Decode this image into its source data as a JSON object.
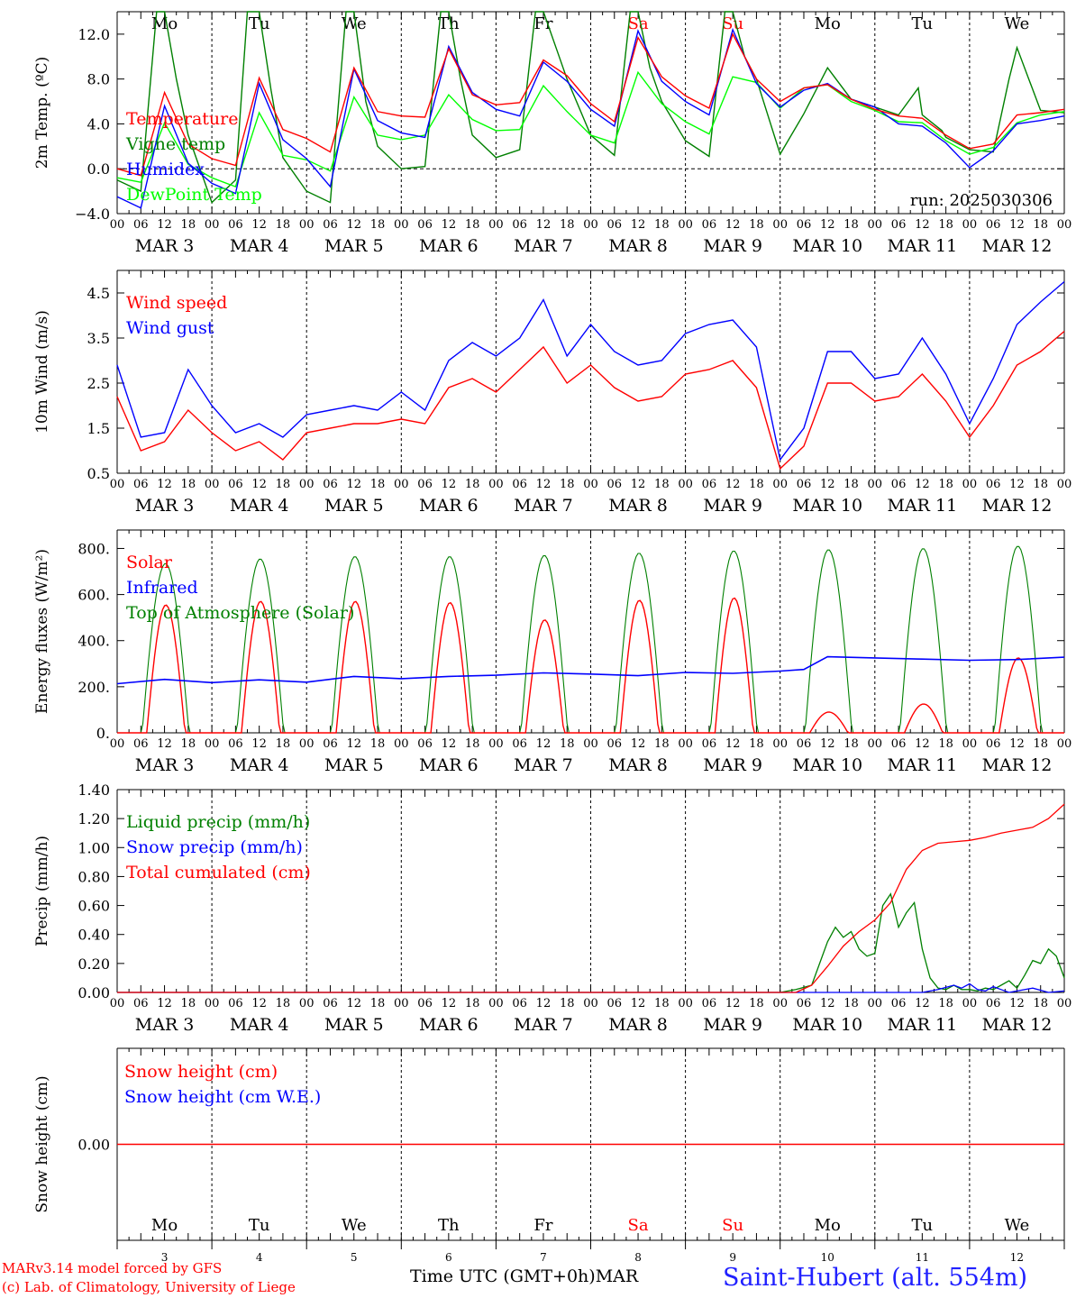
{
  "footer": {
    "model": "MARv3.14 model forced by GFS",
    "lab": "(c) Lab. of Climatology, University of Liege",
    "station": "Saint-Hubert (alt. 554m)",
    "xaxis_title": "Time UTC (GMT+0h)",
    "month": "MAR"
  },
  "colors": {
    "red": "#ff0000",
    "green": "#008000",
    "blue": "#0000ff",
    "lime": "#00ff00",
    "weekend": "#ff0000",
    "text": "#000000",
    "station": "#2020ff"
  },
  "days": [
    {
      "dow": "Mo",
      "date": "MAR 3",
      "num": "3",
      "weekend": false
    },
    {
      "dow": "Tu",
      "date": "MAR 4",
      "num": "4",
      "weekend": false
    },
    {
      "dow": "We",
      "date": "MAR 5",
      "num": "5",
      "weekend": false
    },
    {
      "dow": "Th",
      "date": "MAR 6",
      "num": "6",
      "weekend": false
    },
    {
      "dow": "Fr",
      "date": "MAR 7",
      "num": "7",
      "weekend": false
    },
    {
      "dow": "Sa",
      "date": "MAR 8",
      "num": "8",
      "weekend": true
    },
    {
      "dow": "Su",
      "date": "MAR 9",
      "num": "9",
      "weekend": true
    },
    {
      "dow": "Mo",
      "date": "MAR 10",
      "num": "10",
      "weekend": false
    },
    {
      "dow": "Tu",
      "date": "MAR 11",
      "num": "11",
      "weekend": false
    },
    {
      "dow": "We",
      "date": "MAR 12",
      "num": "12",
      "weekend": false
    }
  ],
  "hour_ticks": [
    "00",
    "06",
    "12",
    "18"
  ],
  "chart_data": [
    {
      "type": "line",
      "ylabel": "2m Temp. (ºC)",
      "ylim": [
        -4,
        14
      ],
      "yticks": [
        -4,
        0,
        4,
        8,
        12
      ],
      "ytick_labels": [
        "−4.0",
        "0.0",
        "4.0",
        "8.0",
        "12.0"
      ],
      "annotation": "run: 2025030306",
      "zero_line": true,
      "series": [
        {
          "name": "Temperature",
          "color": "red",
          "x": [
            0,
            6,
            12,
            18,
            24,
            30,
            36,
            42,
            48,
            54,
            60,
            66,
            72,
            78,
            84,
            90,
            96,
            102,
            108,
            114,
            120,
            126,
            132,
            138,
            144,
            150,
            156,
            162,
            168,
            174,
            180,
            186,
            192,
            198,
            204,
            210,
            216,
            222,
            228,
            234,
            240
          ],
          "y": [
            0,
            -0.6,
            6.8,
            2.2,
            0.9,
            0.3,
            8.1,
            3.5,
            2.7,
            1.5,
            9.0,
            5.1,
            4.7,
            4.6,
            10.7,
            6.6,
            5.7,
            5.9,
            9.7,
            8.3,
            5.8,
            4.2,
            11.7,
            8.2,
            6.5,
            5.4,
            12.0,
            8.0,
            6.0,
            7.2,
            7.5,
            6.2,
            5.3,
            4.7,
            4.5,
            3.0,
            1.8,
            2.2,
            4.8,
            5.0,
            5.3
          ]
        },
        {
          "name": "Vigne temp",
          "color": "green",
          "x": [
            0,
            6,
            10,
            12,
            15,
            18,
            24,
            30,
            33,
            36,
            39,
            42,
            48,
            54,
            58,
            60,
            63,
            66,
            72,
            78,
            82,
            84,
            87,
            90,
            96,
            102,
            106,
            108,
            112,
            114,
            120,
            126,
            130,
            132,
            135,
            138,
            144,
            150,
            154,
            156,
            159,
            162,
            168,
            174,
            180,
            186,
            192,
            198,
            203,
            204,
            209,
            210,
            216,
            222,
            226,
            228,
            231,
            234,
            240
          ],
          "y": [
            -1,
            -2,
            14,
            14,
            8,
            3,
            -3,
            -1,
            14,
            14,
            7,
            1,
            -2,
            -3,
            14,
            14,
            6,
            2,
            0,
            0.2,
            14,
            14,
            8,
            3,
            1,
            1.7,
            14,
            14,
            10,
            8,
            3,
            1.2,
            14,
            14,
            9,
            6,
            2.5,
            1.1,
            14,
            14,
            10,
            8,
            1.3,
            4.9,
            9,
            6.2,
            5.5,
            4.8,
            7.2,
            4.8,
            3.4,
            2.8,
            1.7,
            1.5,
            8,
            10.8,
            8,
            5.2,
            5
          ]
        },
        {
          "name": "Humidex",
          "color": "blue",
          "x": [
            0,
            6,
            12,
            18,
            24,
            30,
            36,
            42,
            48,
            54,
            60,
            66,
            72,
            78,
            84,
            90,
            96,
            102,
            108,
            114,
            120,
            126,
            132,
            138,
            144,
            150,
            156,
            162,
            168,
            174,
            180,
            186,
            192,
            198,
            204,
            210,
            216,
            222,
            228,
            234,
            240
          ],
          "y": [
            -2.5,
            -3.5,
            5.6,
            0.5,
            -1.3,
            -2.2,
            7.6,
            2.6,
            0.9,
            -1.6,
            8.9,
            4.3,
            3.2,
            2.8,
            10.9,
            6.8,
            5.3,
            4.7,
            9.5,
            7.8,
            5.3,
            3.8,
            12.3,
            7.8,
            6.0,
            4.8,
            12.4,
            7.6,
            5.5,
            7.0,
            7.6,
            6.2,
            5.5,
            4.0,
            3.8,
            2.3,
            0.1,
            1.6,
            4.0,
            4.3,
            4.7
          ]
        },
        {
          "name": "DewPoint Temp",
          "color": "lime",
          "x": [
            0,
            6,
            12,
            18,
            24,
            30,
            36,
            42,
            48,
            54,
            60,
            66,
            72,
            78,
            84,
            90,
            96,
            102,
            108,
            114,
            120,
            126,
            132,
            138,
            144,
            150,
            156,
            162,
            168,
            174,
            180,
            186,
            192,
            198,
            204,
            210,
            216,
            222,
            228,
            234,
            240
          ],
          "y": [
            -0.8,
            -1.2,
            4.1,
            0.4,
            -0.8,
            -1.6,
            5.0,
            1.2,
            0.8,
            -0.2,
            6.4,
            3.0,
            2.6,
            3.0,
            6.6,
            4.4,
            3.4,
            3.5,
            7.4,
            5.1,
            3.0,
            2.3,
            8.6,
            5.8,
            4.2,
            3.1,
            8.2,
            7.7,
            5.4,
            7.2,
            7.5,
            6.0,
            5.2,
            4.2,
            4.1,
            2.5,
            1.3,
            1.9,
            4.1,
            4.8,
            5.1
          ]
        }
      ]
    },
    {
      "type": "line",
      "ylabel": "10m Wind (m/s)",
      "ylim": [
        0.5,
        5.0
      ],
      "yticks": [
        0.5,
        1.5,
        2.5,
        3.5,
        4.5
      ],
      "ytick_labels": [
        "0.5",
        "1.5",
        "2.5",
        "3.5",
        "4.5"
      ],
      "series": [
        {
          "name": "Wind speed",
          "color": "red",
          "x": [
            0,
            6,
            12,
            18,
            24,
            30,
            36,
            42,
            48,
            54,
            60,
            66,
            72,
            78,
            84,
            90,
            96,
            102,
            108,
            114,
            120,
            126,
            132,
            138,
            144,
            150,
            156,
            162,
            168,
            174,
            180,
            186,
            192,
            198,
            204,
            210,
            216,
            222,
            228,
            234,
            240
          ],
          "y": [
            2.2,
            1.0,
            1.2,
            1.9,
            1.4,
            1.0,
            1.2,
            0.8,
            1.4,
            1.5,
            1.6,
            1.6,
            1.7,
            1.6,
            2.4,
            2.6,
            2.3,
            2.8,
            3.3,
            2.5,
            2.9,
            2.4,
            2.1,
            2.2,
            2.7,
            2.8,
            3.0,
            2.4,
            0.6,
            1.1,
            2.5,
            2.5,
            2.1,
            2.2,
            2.7,
            2.1,
            1.3,
            2.0,
            2.9,
            3.2,
            3.65
          ]
        },
        {
          "name": "Wind gust",
          "color": "blue",
          "x": [
            0,
            6,
            12,
            18,
            24,
            30,
            36,
            42,
            48,
            54,
            60,
            66,
            72,
            78,
            84,
            90,
            96,
            102,
            108,
            114,
            120,
            126,
            132,
            138,
            144,
            150,
            156,
            162,
            168,
            174,
            180,
            186,
            192,
            198,
            204,
            210,
            216,
            222,
            228,
            234,
            240
          ],
          "y": [
            2.9,
            1.3,
            1.4,
            2.8,
            2.0,
            1.4,
            1.6,
            1.3,
            1.8,
            1.9,
            2.0,
            1.9,
            2.3,
            1.9,
            3.0,
            3.4,
            3.1,
            3.5,
            4.35,
            3.1,
            3.8,
            3.2,
            2.9,
            3.0,
            3.6,
            3.8,
            3.9,
            3.3,
            0.8,
            1.5,
            3.2,
            3.2,
            2.6,
            2.7,
            3.5,
            2.7,
            1.6,
            2.6,
            3.8,
            4.3,
            4.75
          ]
        }
      ]
    },
    {
      "type": "line",
      "ylabel": "Energy fluxes (W/m²)",
      "ylim": [
        0,
        880
      ],
      "yticks": [
        0,
        200,
        400,
        600,
        800
      ],
      "ytick_labels": [
        "0.",
        "200.",
        "400.",
        "600.",
        "800."
      ],
      "series": [
        {
          "name": "Solar",
          "color": "red",
          "peaks": [
            555,
            570,
            570,
            565,
            490,
            575,
            585,
            90,
            125,
            325
          ]
        },
        {
          "name": "Infrared",
          "color": "blue",
          "x": [
            0,
            12,
            24,
            36,
            48,
            60,
            72,
            84,
            96,
            108,
            120,
            132,
            144,
            156,
            168,
            174,
            180,
            192,
            204,
            216,
            228,
            240
          ],
          "y": [
            213,
            232,
            218,
            230,
            220,
            245,
            235,
            245,
            250,
            260,
            255,
            248,
            262,
            258,
            268,
            275,
            330,
            325,
            320,
            315,
            318,
            328
          ]
        },
        {
          "name": "Top of Atmosphere (Solar)",
          "color": "green",
          "peaks": [
            735,
            755,
            765,
            765,
            770,
            780,
            790,
            795,
            800,
            810
          ]
        }
      ]
    },
    {
      "type": "line",
      "ylabel": "Precip (mm/h)",
      "ylim": [
        0,
        1.4
      ],
      "yticks": [
        0,
        0.2,
        0.4,
        0.6,
        0.8,
        1.0,
        1.2,
        1.4
      ],
      "ytick_labels": [
        "0.00",
        "0.20",
        "0.40",
        "0.60",
        "0.80",
        "1.00",
        "1.20",
        "1.40"
      ],
      "series": [
        {
          "name": "Liquid precip (mm/h)",
          "color": "green",
          "x": [
            0,
            168,
            172,
            176,
            178,
            180,
            182,
            184,
            186,
            188,
            190,
            192,
            194,
            196,
            198,
            200,
            202,
            204,
            206,
            208,
            210,
            212,
            214,
            216,
            218,
            220,
            222,
            224,
            226,
            228,
            230,
            232,
            234,
            236,
            238,
            240
          ],
          "y": [
            0,
            0,
            0.02,
            0.05,
            0.2,
            0.35,
            0.45,
            0.38,
            0.42,
            0.3,
            0.25,
            0.27,
            0.6,
            0.68,
            0.45,
            0.55,
            0.62,
            0.3,
            0.1,
            0.03,
            0.02,
            0.05,
            0.02,
            0.02,
            0.01,
            0.03,
            0.02,
            0.05,
            0.08,
            0.03,
            0.12,
            0.22,
            0.2,
            0.3,
            0.25,
            0.1
          ]
        },
        {
          "name": "Snow precip (mm/h)",
          "color": "blue",
          "x": [
            0,
            204,
            208,
            212,
            214,
            216,
            218,
            220,
            222,
            224,
            226,
            228,
            232,
            236,
            240
          ],
          "y": [
            0,
            0,
            0.02,
            0.05,
            0.03,
            0.06,
            0.02,
            0.01,
            0.04,
            0.02,
            0,
            0.01,
            0.03,
            0,
            0.01
          ]
        },
        {
          "name": "Total cumulated (cm)",
          "color": "red",
          "x": [
            0,
            172,
            176,
            180,
            184,
            188,
            192,
            196,
            200,
            204,
            208,
            212,
            216,
            220,
            224,
            228,
            232,
            236,
            240
          ],
          "y": [
            0,
            0,
            0.05,
            0.18,
            0.32,
            0.42,
            0.5,
            0.62,
            0.85,
            0.98,
            1.03,
            1.04,
            1.05,
            1.07,
            1.1,
            1.12,
            1.14,
            1.2,
            1.3
          ]
        }
      ]
    },
    {
      "type": "line",
      "ylabel": "Snow height (cm)",
      "ytick_labels": [
        "0.00"
      ],
      "series": [
        {
          "name": "Snow height (cm)",
          "color": "red",
          "x": [
            0,
            240
          ],
          "y": [
            0,
            0
          ]
        },
        {
          "name": "Snow height (cm W.E.)",
          "color": "blue",
          "x": [
            0,
            240
          ],
          "y": [
            0,
            0
          ]
        }
      ]
    }
  ]
}
